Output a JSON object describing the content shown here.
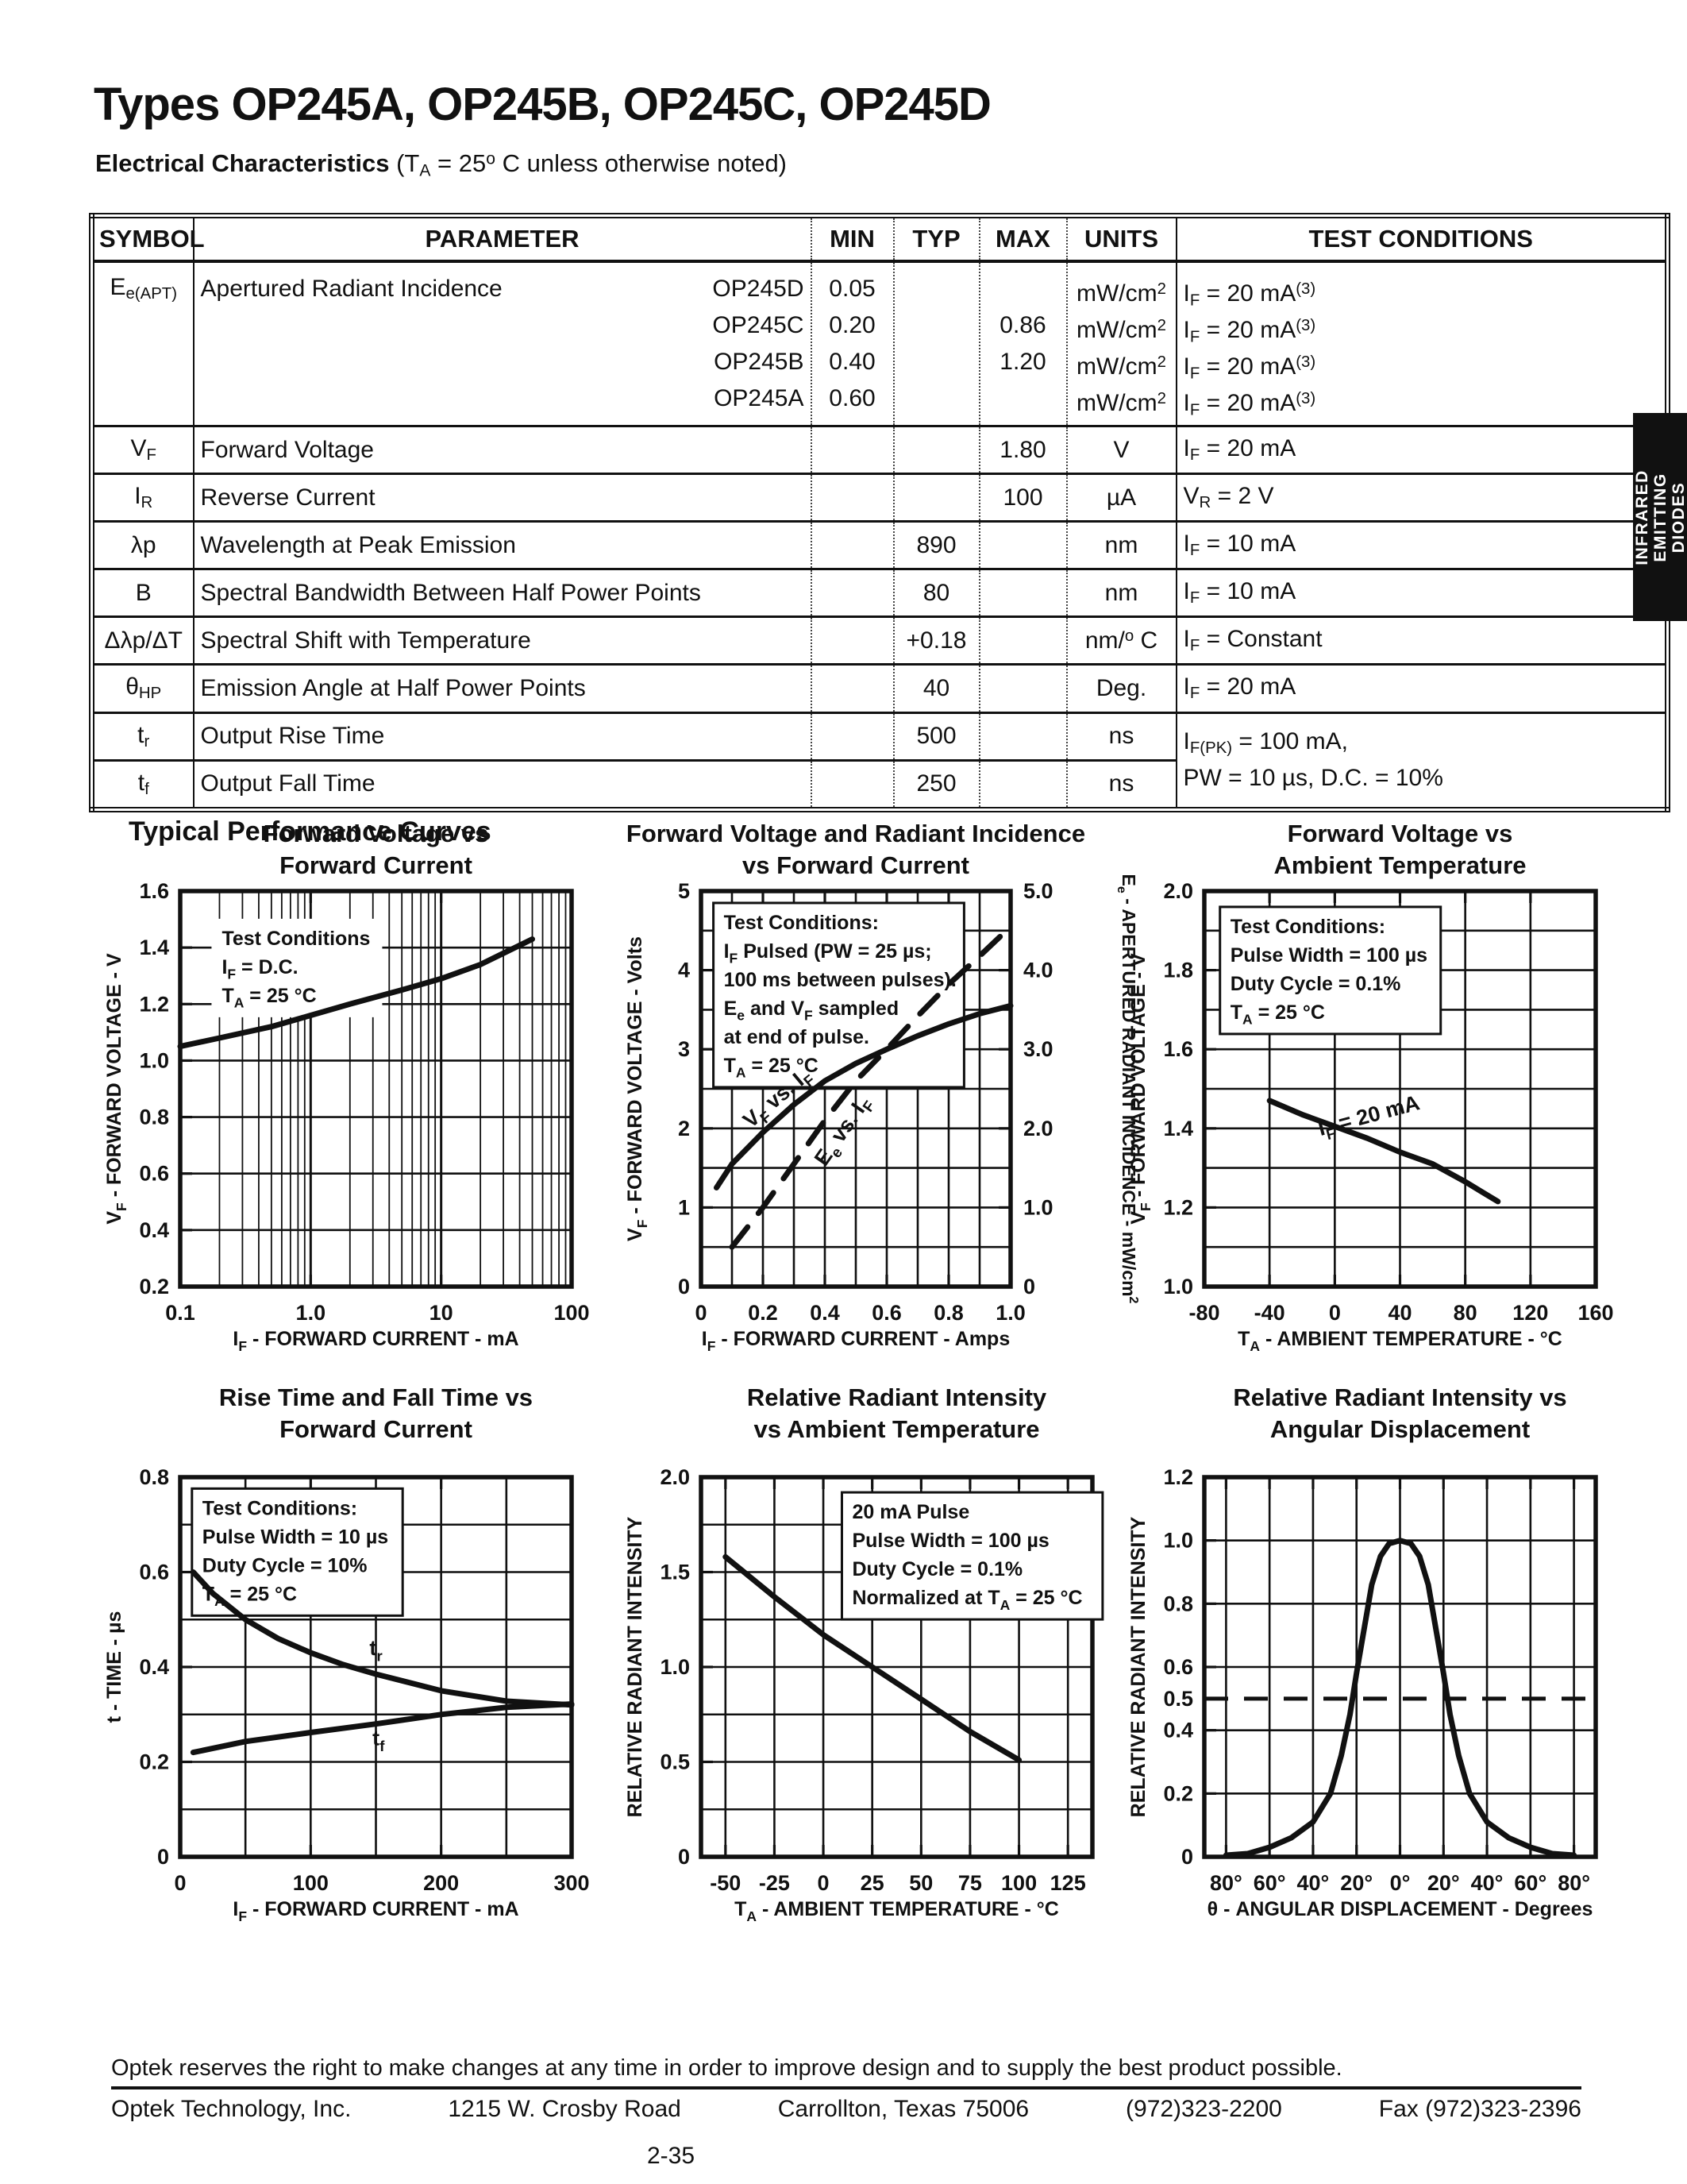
{
  "page": {
    "title": "Types OP245A, OP245B, OP245C, OP245D",
    "subtitle_bold": "Electrical Characteristics",
    "subtitle_rest": " (T~A~ = 25^o^ C unless otherwise noted)",
    "section_heading": "Typical Performance Curves",
    "side_tab": {
      "lines": [
        "INFRARED",
        "EMITTING",
        "DIODES"
      ]
    },
    "colors": {
      "ink": "#111111",
      "paper": "#ffffff"
    },
    "footer": {
      "notice": "Optek reserves the right to make changes at any time in order to improve design and to supply the best product possible.",
      "company": "Optek Technology, Inc.",
      "address": "1215 W. Crosby Road",
      "city": "Carrollton, Texas 75006",
      "phone": "(972)323-2200",
      "fax": "Fax (972)323-2396",
      "page_number": "2-35"
    }
  },
  "table": {
    "headers": [
      "SYMBOL",
      "PARAMETER",
      "MIN",
      "TYP",
      "MAX",
      "UNITS",
      "TEST CONDITIONS"
    ],
    "row_eapt": {
      "symbol": "E~e(APT)~",
      "parameter": "Apertured Radiant Incidence",
      "sublines": [
        {
          "device": "OP245D",
          "min": "0.05",
          "typ": "",
          "max": "",
          "units": "mW/cm^2^",
          "cond": "I~F~ = 20 mA^(3)^"
        },
        {
          "device": "OP245C",
          "min": "0.20",
          "typ": "",
          "max": "0.86",
          "units": "mW/cm^2^",
          "cond": "I~F~ = 20 mA^(3)^"
        },
        {
          "device": "OP245B",
          "min": "0.40",
          "typ": "",
          "max": "1.20",
          "units": "mW/cm^2^",
          "cond": "I~F~ = 20 mA^(3)^"
        },
        {
          "device": "OP245A",
          "min": "0.60",
          "typ": "",
          "max": "",
          "units": "mW/cm^2^",
          "cond": "I~F~ = 20 mA^(3)^"
        }
      ]
    },
    "rows": [
      {
        "symbol": "V~F~",
        "parameter": "Forward Voltage",
        "min": "",
        "typ": "",
        "max": "1.80",
        "units": "V",
        "cond": "I~F~ = 20 mA"
      },
      {
        "symbol": "I~R~",
        "parameter": "Reverse Current",
        "min": "",
        "typ": "",
        "max": "100",
        "units": "µA",
        "cond": "V~R~ = 2 V"
      },
      {
        "symbol": "λp",
        "parameter": "Wavelength at Peak Emission",
        "min": "",
        "typ": "890",
        "max": "",
        "units": "nm",
        "cond": "I~F~ = 10 mA"
      },
      {
        "symbol": "B",
        "parameter": "Spectral Bandwidth Between Half Power Points",
        "min": "",
        "typ": "80",
        "max": "",
        "units": "nm",
        "cond": "I~F~ = 10 mA"
      },
      {
        "symbol": "Δλp/ΔT",
        "parameter": "Spectral Shift with Temperature",
        "min": "",
        "typ": "+0.18",
        "max": "",
        "units": "nm/^o^ C",
        "cond": "I~F~ = Constant"
      },
      {
        "symbol": "θ~HP~",
        "parameter": "Emission Angle at Half Power Points",
        "min": "",
        "typ": "40",
        "max": "",
        "units": "Deg.",
        "cond": "I~F~ = 20 mA"
      },
      {
        "symbol": "t~r~",
        "parameter": "Output Rise Time",
        "min": "",
        "typ": "500",
        "max": "",
        "units": "ns",
        "cond": "I~F(PK)~ = 100 mA,"
      },
      {
        "symbol": "t~f~",
        "parameter": "Output Fall Time",
        "min": "",
        "typ": "250",
        "max": "",
        "units": "ns",
        "cond": "PW = 10 µs, D.C. = 10%"
      }
    ]
  },
  "chart_data": [
    {
      "type": "line",
      "title": [
        "Forward Voltage vs",
        "Forward Current"
      ],
      "xlabel": "I~F~ - FORWARD CURRENT - mA",
      "ylabel": "V~F~ - FORWARD VOLTAGE - V",
      "xscale": "log",
      "xlim": [
        0.1,
        100
      ],
      "ylim": [
        0.2,
        1.6
      ],
      "xticks": [
        0.1,
        1.0,
        10,
        100
      ],
      "xtick_labels": [
        "0.1",
        "1.0",
        "10",
        "100"
      ],
      "yticks": [
        0.2,
        0.4,
        0.6,
        0.8,
        1.0,
        1.2,
        1.4,
        1.6
      ],
      "ytick_labels": [
        "0.2",
        "0.4",
        "0.6",
        "0.8",
        "1.0",
        "1.2",
        "1.4",
        "1.6"
      ],
      "ygrid": [
        0.4,
        0.6,
        0.8,
        1.0,
        1.2,
        1.4
      ],
      "annotation": {
        "lines": [
          "Test Conditions",
          "I~F~ = D.C.",
          "T~A~ = 25 °C"
        ],
        "fx": 0.08,
        "fy": 0.07,
        "boxed": false
      },
      "series": [
        {
          "name": "VF vs IF",
          "dashed": false,
          "points": [
            [
              0.1,
              1.05
            ],
            [
              0.2,
              1.08
            ],
            [
              0.5,
              1.12
            ],
            [
              1,
              1.16
            ],
            [
              2,
              1.2
            ],
            [
              5,
              1.25
            ],
            [
              10,
              1.29
            ],
            [
              20,
              1.34
            ],
            [
              30,
              1.38
            ],
            [
              50,
              1.43
            ]
          ]
        }
      ]
    },
    {
      "type": "line",
      "title": [
        "Forward Voltage and Radiant Incidence",
        "vs Forward Current"
      ],
      "xlabel": "I~F~ - FORWARD CURRENT - Amps",
      "ylabel": "V~F~ - FORWARD VOLTAGE - Volts",
      "right_ylabel": "E~e~ - APERTURED RADIANT INCIDENCE - mW/cm^2^",
      "xlim": [
        0,
        1.0
      ],
      "ylim": [
        0,
        5
      ],
      "xticks": [
        0,
        0.2,
        0.4,
        0.6,
        0.8,
        1.0
      ],
      "xtick_labels": [
        "0",
        "0.2",
        "0.4",
        "0.6",
        "0.8",
        "1.0"
      ],
      "xgrid": [
        0.1,
        0.3,
        0.5,
        0.7,
        0.9,
        0.2,
        0.4,
        0.6,
        0.8
      ],
      "yticks": [
        0,
        1,
        2,
        3,
        4,
        5
      ],
      "ytick_labels": [
        "0",
        "1",
        "2",
        "3",
        "4",
        "5"
      ],
      "ygrid": [
        0.5,
        1,
        1.5,
        2,
        2.5,
        3,
        3.5,
        4,
        4.5
      ],
      "right_yticks": [
        0,
        1,
        2,
        3,
        4,
        5
      ],
      "right_ytick_labels": [
        "0",
        "1.0",
        "2.0",
        "3.0",
        "4.0",
        "5.0"
      ],
      "annotation": {
        "lines": [
          "Test Conditions:",
          "I~F~ Pulsed (PW = 25 µs;",
          "100 ms between pulses).",
          "E~e~ and V~F~ sampled",
          "at end of pulse.",
          "T~A~ = 25 °C"
        ],
        "fx": 0.04,
        "fy": 0.03,
        "boxed": true
      },
      "series": [
        {
          "name": "VF vs IF",
          "dashed": false,
          "points": [
            [
              0.05,
              1.25
            ],
            [
              0.1,
              1.55
            ],
            [
              0.2,
              1.95
            ],
            [
              0.3,
              2.3
            ],
            [
              0.4,
              2.6
            ],
            [
              0.5,
              2.82
            ],
            [
              0.6,
              3.0
            ],
            [
              0.7,
              3.17
            ],
            [
              0.8,
              3.32
            ],
            [
              0.9,
              3.45
            ],
            [
              1.0,
              3.55
            ]
          ],
          "label": {
            "text": "V~F~ vs. I~F~",
            "x": 0.26,
            "y": 2.32,
            "rot": -40
          }
        },
        {
          "name": "Ee vs IF",
          "dashed": true,
          "points": [
            [
              0.1,
              0.5
            ],
            [
              0.2,
              1.0
            ],
            [
              0.3,
              1.55
            ],
            [
              0.4,
              2.1
            ],
            [
              0.5,
              2.6
            ],
            [
              0.6,
              3.0
            ],
            [
              0.7,
              3.42
            ],
            [
              0.8,
              3.82
            ],
            [
              0.9,
              4.18
            ],
            [
              1.0,
              4.55
            ]
          ],
          "label": {
            "text": "E~e~ vs. I~F~",
            "x": 0.475,
            "y": 1.92,
            "rot": -55
          }
        }
      ]
    },
    {
      "type": "line",
      "title": [
        "Forward Voltage vs",
        "Ambient Temperature"
      ],
      "xlabel": "T~A~ - AMBIENT TEMPERATURE - °C",
      "ylabel": "V~F~ - FORWARD VOLTAGE - V",
      "xlim": [
        -80,
        160
      ],
      "ylim": [
        1.0,
        2.0
      ],
      "xticks": [
        -80,
        -40,
        0,
        40,
        80,
        120,
        160
      ],
      "xtick_labels": [
        "-80",
        "-40",
        "0",
        "40",
        "80",
        "120",
        "160"
      ],
      "xgrid": [
        -40,
        0,
        40,
        80,
        120
      ],
      "yticks": [
        1.0,
        1.2,
        1.4,
        1.6,
        1.8,
        2.0
      ],
      "ytick_labels": [
        "1.0",
        "1.2",
        "1.4",
        "1.6",
        "1.8",
        "2.0"
      ],
      "ygrid": [
        1.1,
        1.2,
        1.3,
        1.4,
        1.5,
        1.6,
        1.7,
        1.8,
        1.9
      ],
      "annotation": {
        "lines": [
          "Test Conditions:",
          "Pulse Width = 100 µs",
          "Duty Cycle = 0.1%",
          "T~A~ = 25 °C"
        ],
        "fx": 0.04,
        "fy": 0.04,
        "boxed": true
      },
      "series": [
        {
          "name": "IF = 20 mA",
          "dashed": false,
          "points": [
            [
              -40,
              1.47
            ],
            [
              -20,
              1.435
            ],
            [
              0,
              1.405
            ],
            [
              20,
              1.375
            ],
            [
              40,
              1.34
            ],
            [
              60,
              1.31
            ],
            [
              80,
              1.265
            ],
            [
              90,
              1.24
            ],
            [
              100,
              1.215
            ]
          ],
          "label": {
            "text": "I~F~ = 20 mA",
            "x": 22,
            "y": 1.415,
            "rot": -15
          }
        }
      ]
    },
    {
      "type": "line",
      "title": [
        "Rise Time and Fall Time vs",
        "Forward Current"
      ],
      "xlabel": "I~F~ - FORWARD CURRENT - mA",
      "ylabel": "t - TIME - µs",
      "xlim": [
        0,
        300
      ],
      "ylim": [
        0,
        0.8
      ],
      "xticks": [
        0,
        100,
        200,
        300
      ],
      "xtick_labels": [
        "0",
        "100",
        "200",
        "300"
      ],
      "xgrid": [
        50,
        100,
        150,
        200,
        250
      ],
      "yticks": [
        0,
        0.2,
        0.4,
        0.6,
        0.8
      ],
      "ytick_labels": [
        "0",
        "0.2",
        "0.4",
        "0.6",
        "0.8"
      ],
      "ygrid": [
        0.1,
        0.2,
        0.3,
        0.4,
        0.5,
        0.6,
        0.7
      ],
      "annotation": {
        "lines": [
          "Test Conditions:",
          "Pulse Width = 10 µs",
          "Duty Cycle = 10%",
          "T~A~ = 25 °C"
        ],
        "fx": 0.03,
        "fy": 0.03,
        "boxed": true
      },
      "series": [
        {
          "name": "tr",
          "dashed": false,
          "points": [
            [
              10,
              0.6
            ],
            [
              25,
              0.555
            ],
            [
              50,
              0.5
            ],
            [
              75,
              0.46
            ],
            [
              100,
              0.43
            ],
            [
              125,
              0.405
            ],
            [
              150,
              0.385
            ],
            [
              200,
              0.35
            ],
            [
              250,
              0.328
            ],
            [
              300,
              0.32
            ]
          ],
          "label": {
            "text": "t~r~",
            "x": 150,
            "y": 0.425,
            "rot": 0
          }
        },
        {
          "name": "tf",
          "dashed": false,
          "points": [
            [
              10,
              0.22
            ],
            [
              50,
              0.243
            ],
            [
              100,
              0.262
            ],
            [
              150,
              0.28
            ],
            [
              200,
              0.3
            ],
            [
              250,
              0.315
            ],
            [
              300,
              0.322
            ]
          ],
          "label": {
            "text": "t~f~",
            "x": 152,
            "y": 0.235,
            "rot": 0
          }
        }
      ]
    },
    {
      "type": "line",
      "title": [
        "Relative Radiant Intensity",
        "vs Ambient Temperature"
      ],
      "xlabel": "T~A~ - AMBIENT TEMPERATURE - °C",
      "ylabel": "RELATIVE RADIANT INTENSITY",
      "xlim": [
        -62.5,
        137.5
      ],
      "ylim": [
        0,
        2.0
      ],
      "xticks": [
        -50,
        -25,
        0,
        25,
        50,
        75,
        100,
        125
      ],
      "xtick_labels": [
        "-50",
        "-25",
        "0",
        "25",
        "50",
        "75",
        "100",
        "125"
      ],
      "xgrid": [
        -50,
        -25,
        0,
        25,
        50,
        75,
        100,
        125
      ],
      "yticks": [
        0,
        0.5,
        1.0,
        1.5,
        2.0
      ],
      "ytick_labels": [
        "0",
        "0.5",
        "1.0",
        "1.5",
        "2.0"
      ],
      "ygrid": [
        0.25,
        0.5,
        0.75,
        1.0,
        1.25,
        1.5,
        1.75
      ],
      "annotation": {
        "lines": [
          "20 mA Pulse",
          "Pulse Width = 100 µs",
          "Duty Cycle = 0.1%",
          "Normalized at T~A~ = 25 °C"
        ],
        "fx": 0.36,
        "fy": 0.04,
        "boxed": true
      },
      "series": [
        {
          "name": "relative intensity",
          "dashed": false,
          "points": [
            [
              -50,
              1.58
            ],
            [
              -25,
              1.37
            ],
            [
              0,
              1.17
            ],
            [
              25,
              1.0
            ],
            [
              50,
              0.83
            ],
            [
              75,
              0.66
            ],
            [
              100,
              0.51
            ]
          ]
        }
      ]
    },
    {
      "type": "line",
      "title": [
        "Relative Radiant Intensity vs",
        "Angular Displacement"
      ],
      "xlabel": "θ - ANGULAR DISPLACEMENT - Degrees",
      "ylabel": "RELATIVE RADIANT INTENSITY",
      "xlim": [
        -90,
        90
      ],
      "ylim": [
        0,
        1.2
      ],
      "xticks": [
        -80,
        -60,
        -40,
        -20,
        0,
        20,
        40,
        60,
        80
      ],
      "xtick_labels": [
        "80°",
        "60°",
        "40°",
        "20°",
        "0°",
        "20°",
        "40°",
        "60°",
        "80°"
      ],
      "xgrid": [
        -80,
        -60,
        -40,
        -20,
        0,
        20,
        40,
        60,
        80
      ],
      "yticks": [
        0,
        0.2,
        0.4,
        0.5,
        0.6,
        0.8,
        1.0,
        1.2
      ],
      "ytick_labels": [
        "0",
        "0.2",
        "0.4",
        "0.5",
        "0.6",
        "0.8",
        "1.0",
        "1.2"
      ],
      "ygrid": [
        0.2,
        0.4,
        0.6,
        0.8,
        1.0
      ],
      "hlines": [
        {
          "y": 0.5,
          "dashed": true
        }
      ],
      "series": [
        {
          "name": "beam pattern",
          "dashed": false,
          "points": [
            [
              -80,
              0.005
            ],
            [
              -70,
              0.01
            ],
            [
              -60,
              0.03
            ],
            [
              -50,
              0.06
            ],
            [
              -40,
              0.11
            ],
            [
              -32,
              0.2
            ],
            [
              -27,
              0.32
            ],
            [
              -23,
              0.45
            ],
            [
              -20,
              0.58
            ],
            [
              -17,
              0.7
            ],
            [
              -13,
              0.86
            ],
            [
              -9,
              0.95
            ],
            [
              -5,
              0.99
            ],
            [
              0,
              1.0
            ],
            [
              5,
              0.99
            ],
            [
              9,
              0.95
            ],
            [
              13,
              0.86
            ],
            [
              17,
              0.7
            ],
            [
              20,
              0.58
            ],
            [
              23,
              0.45
            ],
            [
              27,
              0.32
            ],
            [
              32,
              0.2
            ],
            [
              40,
              0.11
            ],
            [
              50,
              0.06
            ],
            [
              60,
              0.03
            ],
            [
              70,
              0.01
            ],
            [
              80,
              0.005
            ]
          ]
        }
      ]
    }
  ]
}
